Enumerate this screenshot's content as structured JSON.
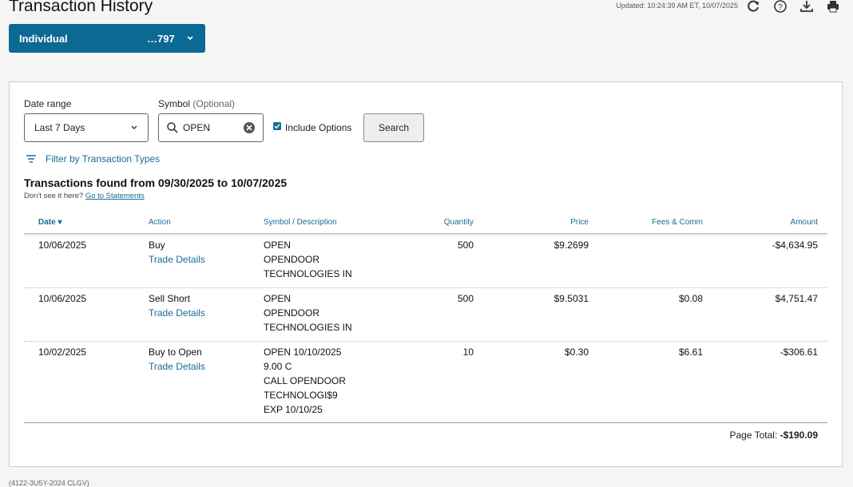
{
  "header": {
    "title": "Transaction History",
    "updated": "Updated: 10:24:39 AM ET, 10/07/2025"
  },
  "account": {
    "name": "Individual",
    "number": "…797"
  },
  "form": {
    "date_range_label": "Date range",
    "date_range_value": "Last 7 Days",
    "symbol_label": "Symbol",
    "symbol_optional": "(Optional)",
    "symbol_value": "OPEN",
    "include_options": "Include Options",
    "search": "Search",
    "filter": "Filter by Transaction Types"
  },
  "results": {
    "heading": "Transactions found from 09/30/2025 to 10/07/2025",
    "prompt": "Don't see it here?",
    "link": "Go to Statements"
  },
  "table": {
    "columns": [
      "Date",
      "Action",
      "Symbol / Description",
      "Quantity",
      "Price",
      "Fees & Comm",
      "Amount"
    ],
    "rows": [
      {
        "date": "10/06/2025",
        "action": "Buy",
        "details": "Trade Details",
        "description": [
          "OPEN",
          "OPENDOOR",
          "TECHNOLOGIES IN"
        ],
        "quantity": "500",
        "price": "$9.2699",
        "fees": null,
        "amount": "-$4,634.95"
      },
      {
        "date": "10/06/2025",
        "action": "Sell Short",
        "details": "Trade Details",
        "description": [
          "OPEN",
          "OPENDOOR",
          "TECHNOLOGIES IN"
        ],
        "quantity": "500",
        "price": "$9.5031",
        "fees": "$0.08",
        "amount": "$4,751.47"
      },
      {
        "date": "10/02/2025",
        "action": "Buy to Open",
        "details": "Trade Details",
        "description": [
          "OPEN 10/10/2025",
          "9.00 C",
          "CALL OPENDOOR",
          "TECHNOLOGI$9",
          "EXP 10/10/25"
        ],
        "quantity": "10",
        "price": "$0.30",
        "fees": "$6.61",
        "amount": "-$306.61"
      }
    ]
  },
  "footer": {
    "page_total_label": "Page Total:",
    "page_total": "-$190.09",
    "footnote": "(4122-3U5Y-2024 CLGV)"
  }
}
